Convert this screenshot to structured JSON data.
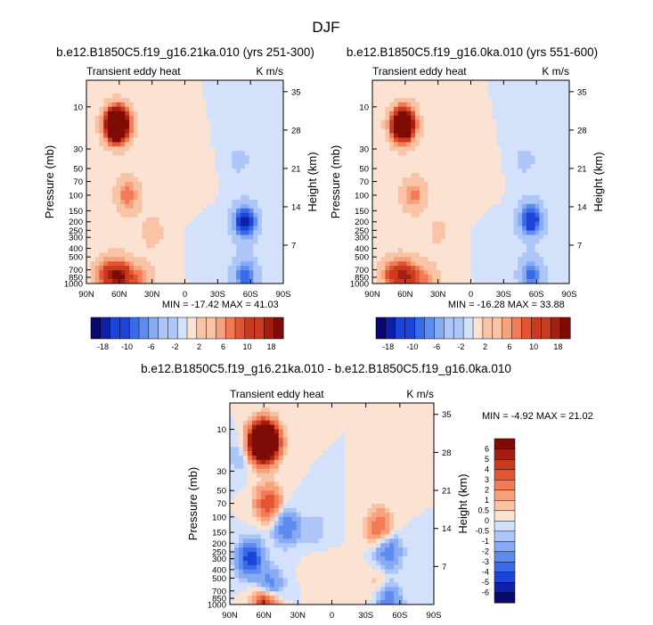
{
  "suptitle": "DJF",
  "colors": {
    "positive_peak": "#8b0000",
    "negative_peak": "#00008b"
  },
  "chart_data": [
    {
      "type": "heatmap",
      "title": "b.e12.B1850C5.f19_g16.21ka.010 (yrs 251-300)",
      "left_label": "Transient eddy heat",
      "right_label": "K m/s",
      "ylabel": "Pressure (mb)",
      "ylabel_right": "Height (km)",
      "x_ticks": [
        "90N",
        "60N",
        "30N",
        "0",
        "30S",
        "60S",
        "90S"
      ],
      "y_ticks": [
        "10",
        "30",
        "50",
        "70",
        "100",
        "150",
        "200",
        "250",
        "300",
        "400",
        "500",
        "700",
        "850",
        "1000"
      ],
      "y_right_ticks": [
        "35",
        "28",
        "21",
        "14",
        "7"
      ],
      "min_max_text": "MIN = -17.42  MAX = 41.03",
      "contour_levels": [
        -18,
        -16,
        -14,
        -12,
        -10,
        -8,
        -6,
        -4,
        -2,
        0,
        2,
        4,
        6,
        8,
        10,
        12,
        14,
        16,
        18
      ],
      "colorbar_labels": [
        "-18",
        "-10",
        "-6",
        "-2",
        "2",
        "6",
        "10",
        "18"
      ],
      "xlim": [
        90,
        -90
      ],
      "ylim_mb": [
        1000,
        5
      ],
      "features": [
        {
          "lat": 62,
          "p": 16,
          "value": 41.03
        },
        {
          "lat": 52,
          "p": 100,
          "value": 10
        },
        {
          "lat": 58,
          "p": 820,
          "value": 16
        },
        {
          "lat": 72,
          "p": 800,
          "value": 12
        },
        {
          "lat": 40,
          "p": 900,
          "value": 8
        },
        {
          "lat": 30,
          "p": 260,
          "value": 4
        },
        {
          "lat": -8,
          "p": 60,
          "value": 2
        },
        {
          "lat": -55,
          "p": 200,
          "value": -17.42
        },
        {
          "lat": -55,
          "p": 800,
          "value": -12
        },
        {
          "lat": -50,
          "p": 40,
          "value": -3
        },
        {
          "lat": -30,
          "p": 300,
          "value": -1
        }
      ]
    },
    {
      "type": "heatmap",
      "title": "b.e12.B1850C5.f19_g16.0ka.010 (yrs 551-600)",
      "left_label": "Transient eddy heat",
      "right_label": "K m/s",
      "ylabel": "Pressure (mb)",
      "ylabel_right": "Height (km)",
      "x_ticks": [
        "90N",
        "60N",
        "30N",
        "0",
        "30S",
        "60S",
        "90S"
      ],
      "y_ticks": [
        "10",
        "30",
        "50",
        "70",
        "100",
        "150",
        "200",
        "250",
        "300",
        "400",
        "500",
        "700",
        "850",
        "1000"
      ],
      "y_right_ticks": [
        "35",
        "28",
        "21",
        "14",
        "7"
      ],
      "min_max_text": "MIN = -16.28  MAX = 33.88",
      "contour_levels": [
        -18,
        -16,
        -14,
        -12,
        -10,
        -8,
        -6,
        -4,
        -2,
        0,
        2,
        4,
        6,
        8,
        10,
        12,
        14,
        16,
        18
      ],
      "colorbar_labels": [
        "-18",
        "-10",
        "-6",
        "-2",
        "2",
        "6",
        "10",
        "18"
      ],
      "xlim": [
        90,
        -90
      ],
      "ylim_mb": [
        1000,
        5
      ],
      "features": [
        {
          "lat": 62,
          "p": 16,
          "value": 33.88
        },
        {
          "lat": 52,
          "p": 100,
          "value": 9
        },
        {
          "lat": 58,
          "p": 820,
          "value": 14
        },
        {
          "lat": 72,
          "p": 800,
          "value": 11
        },
        {
          "lat": 40,
          "p": 900,
          "value": 7
        },
        {
          "lat": 30,
          "p": 260,
          "value": 3
        },
        {
          "lat": -8,
          "p": 60,
          "value": 2
        },
        {
          "lat": -55,
          "p": 190,
          "value": -16.28
        },
        {
          "lat": -55,
          "p": 800,
          "value": -11
        },
        {
          "lat": -50,
          "p": 40,
          "value": -3
        },
        {
          "lat": -30,
          "p": 300,
          "value": -1
        }
      ]
    },
    {
      "type": "heatmap",
      "title": "b.e12.B1850C5.f19_g16.21ka.010 - b.e12.B1850C5.f19_g16.0ka.010",
      "left_label": "Transient eddy heat",
      "right_label": "K m/s",
      "ylabel": "Pressure (mb)",
      "ylabel_right": "Height (km)",
      "x_ticks": [
        "90N",
        "60N",
        "30N",
        "0",
        "30S",
        "60S",
        "90S"
      ],
      "y_ticks": [
        "10",
        "30",
        "50",
        "70",
        "100",
        "150",
        "200",
        "250",
        "300",
        "400",
        "500",
        "700",
        "850",
        "1000"
      ],
      "y_right_ticks": [
        "35",
        "28",
        "21",
        "14",
        "7"
      ],
      "min_max_text": "MIN = -4.92  MAX = 21.02",
      "contour_levels": [
        -6,
        -5,
        -4,
        -3,
        -2,
        -1,
        -0.5,
        0,
        0.5,
        1,
        2,
        3,
        4,
        5,
        6
      ],
      "colorbar_labels": [
        "6",
        "5",
        "4",
        "3",
        "2",
        "1",
        "0.5",
        "0",
        "-0.5",
        "-1",
        "-2",
        "-3",
        "-4",
        "-5",
        "-6"
      ],
      "xlim": [
        90,
        -90
      ],
      "ylim_mb": [
        1000,
        5
      ],
      "features": [
        {
          "lat": 60,
          "p": 14,
          "value": 21.02
        },
        {
          "lat": 56,
          "p": 70,
          "value": 4
        },
        {
          "lat": 58,
          "p": 950,
          "value": 6
        },
        {
          "lat": -42,
          "p": 130,
          "value": 3
        },
        {
          "lat": -42,
          "p": 600,
          "value": 1
        },
        {
          "lat": 10,
          "p": 400,
          "value": 0.5
        },
        {
          "lat": 72,
          "p": 300,
          "value": -4.92
        },
        {
          "lat": 40,
          "p": 130,
          "value": -3
        },
        {
          "lat": 55,
          "p": 650,
          "value": -4
        },
        {
          "lat": -50,
          "p": 250,
          "value": -3
        },
        {
          "lat": -50,
          "p": 900,
          "value": -3
        },
        {
          "lat": 82,
          "p": 20,
          "value": -1
        },
        {
          "lat": 15,
          "p": 140,
          "value": -1
        }
      ]
    }
  ]
}
